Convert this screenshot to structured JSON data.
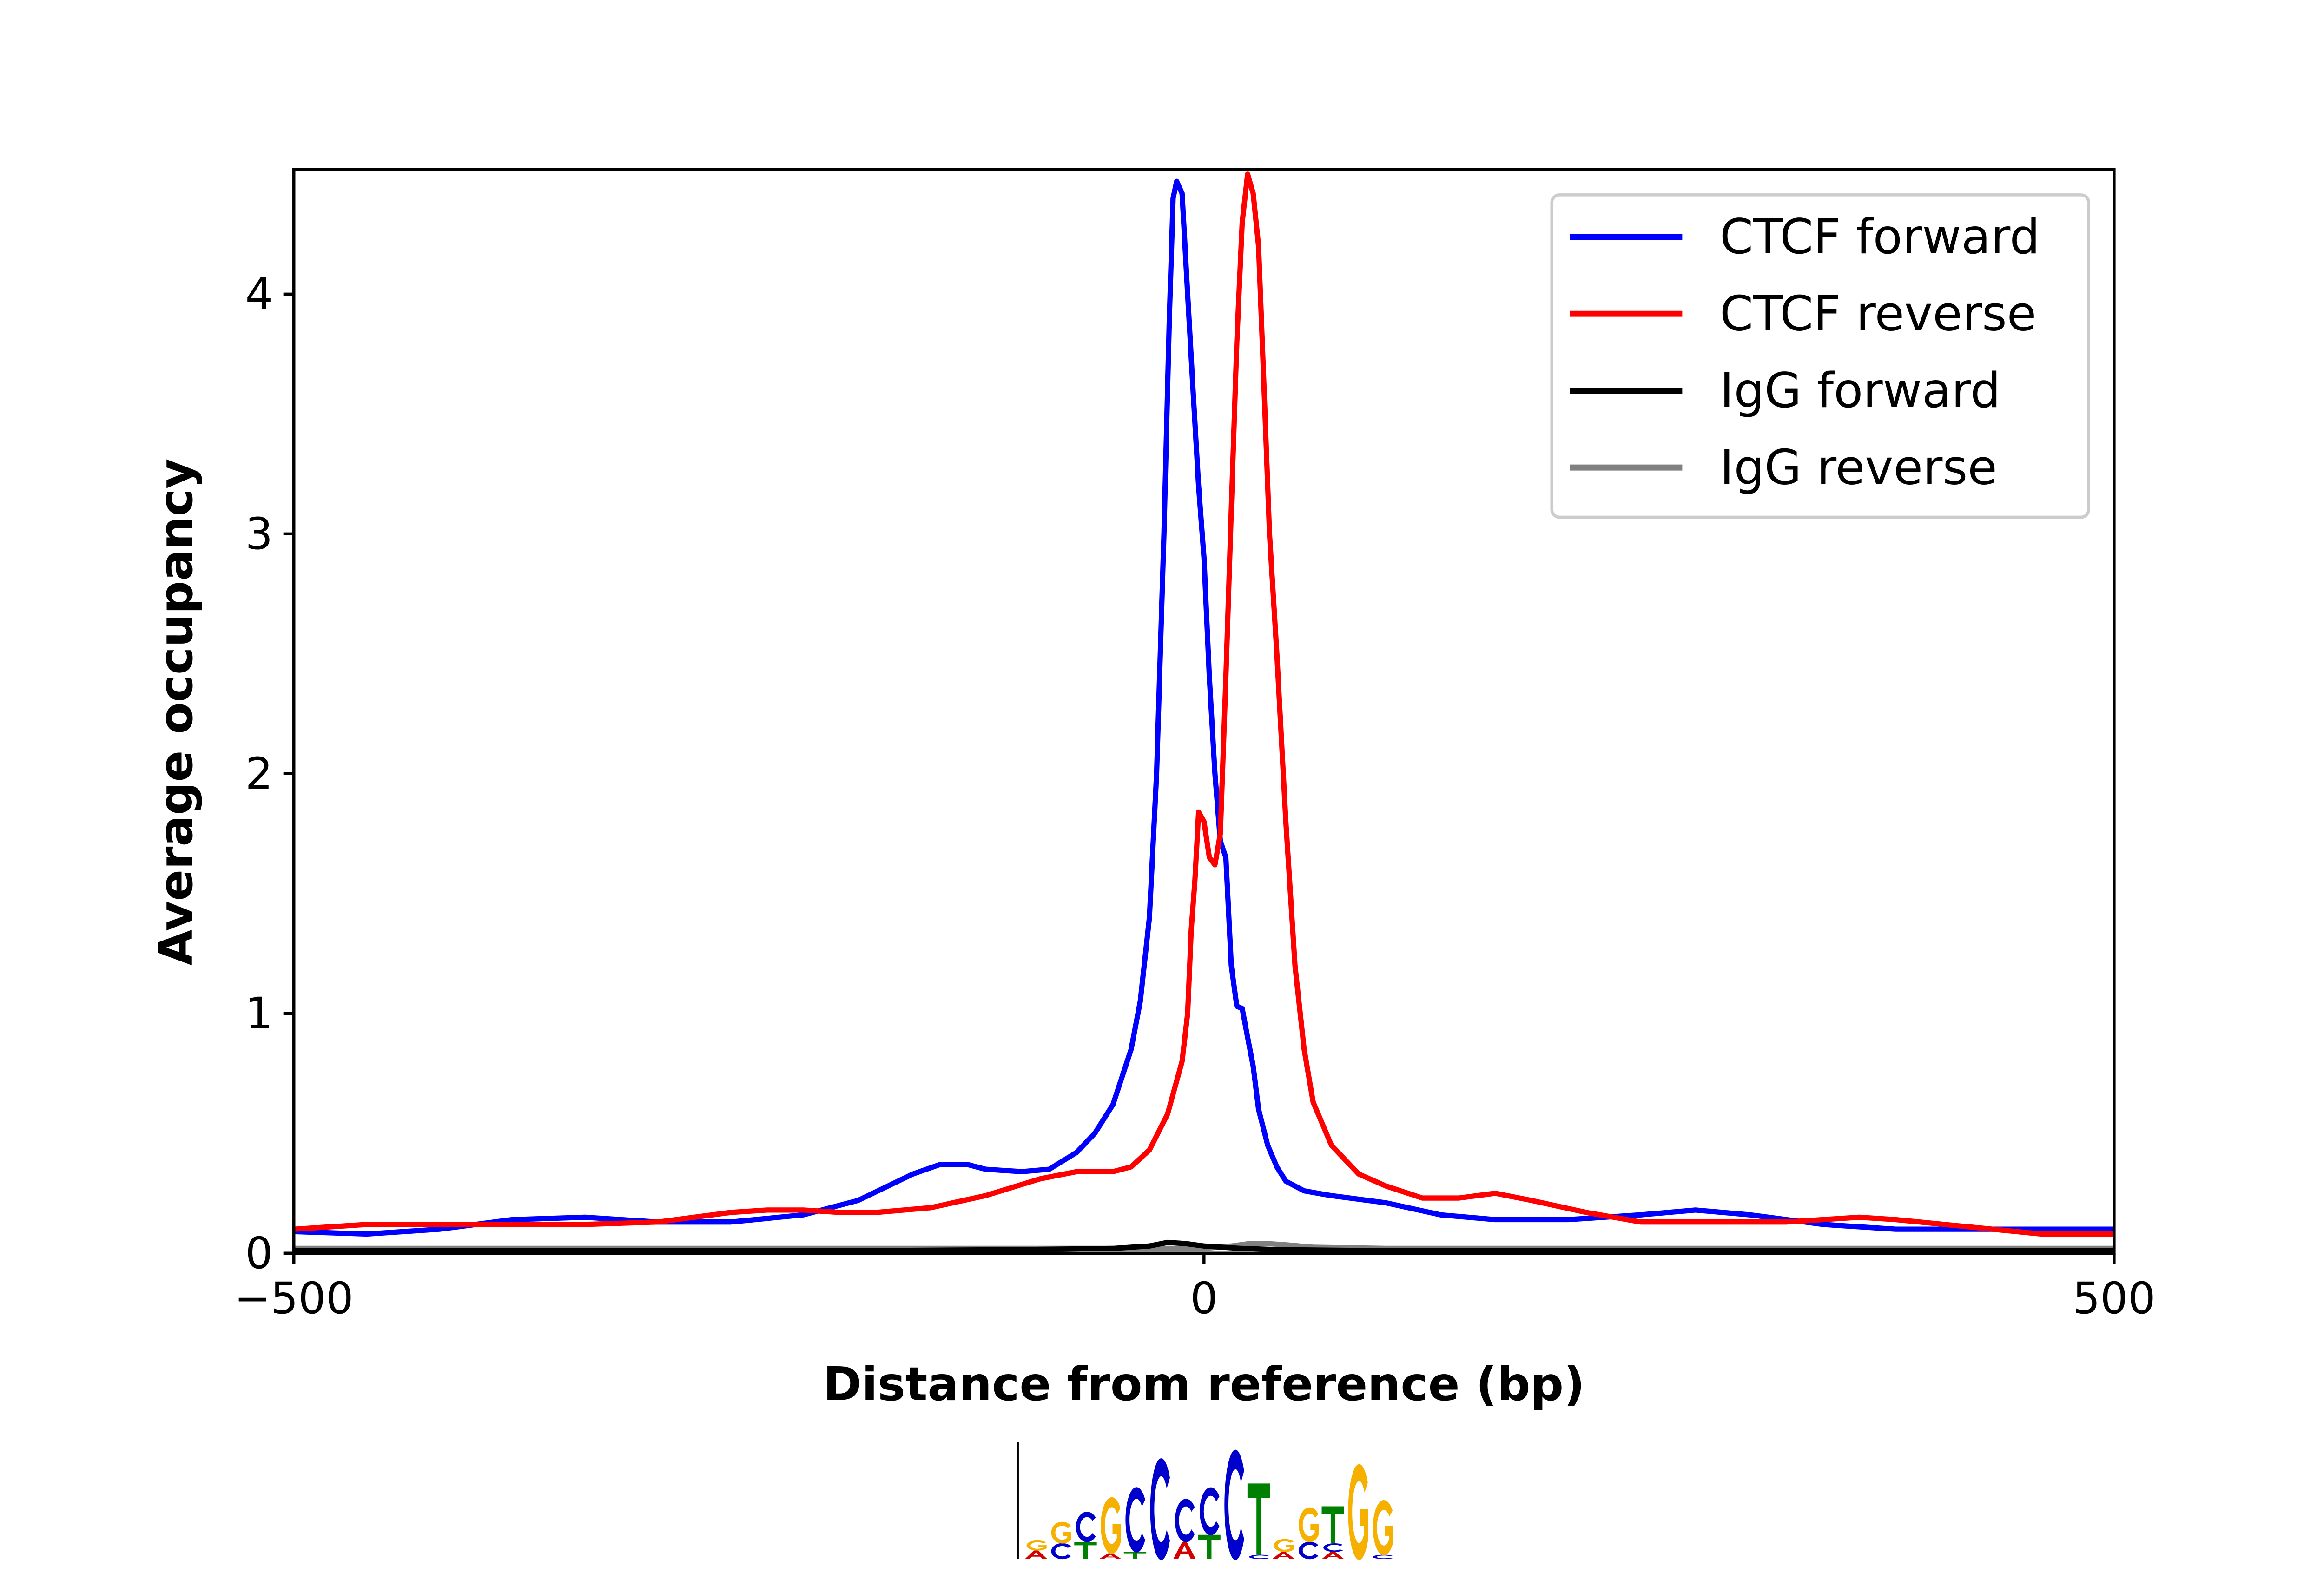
{
  "chart_data": {
    "type": "line",
    "xlabel": "Distance from reference (bp)",
    "ylabel": "Average occupancy",
    "xlim": [
      -500,
      500
    ],
    "ylim": [
      0,
      4.52
    ],
    "xticks": [
      -500,
      0,
      500
    ],
    "xtick_labels": [
      "−500",
      "0",
      "500"
    ],
    "yticks": [
      0,
      1,
      2,
      3,
      4
    ],
    "ytick_labels": [
      "0",
      "1",
      "2",
      "3",
      "4"
    ],
    "grid": false,
    "legend_position": "top-right",
    "series": [
      {
        "name": "CTCF forward",
        "color": "#0000ff",
        "x": [
          -500,
          -460,
          -420,
          -380,
          -340,
          -300,
          -260,
          -220,
          -190,
          -160,
          -145,
          -130,
          -120,
          -100,
          -85,
          -70,
          -60,
          -50,
          -40,
          -35,
          -30,
          -26,
          -22,
          -19,
          -17,
          -15,
          -12,
          -9,
          -6,
          -3,
          0,
          3,
          6,
          9,
          12,
          15,
          18,
          21,
          24,
          27,
          30,
          35,
          40,
          45,
          55,
          70,
          100,
          130,
          160,
          200,
          240,
          270,
          300,
          340,
          380,
          420,
          460,
          500
        ],
        "y": [
          0.09,
          0.08,
          0.1,
          0.14,
          0.15,
          0.13,
          0.13,
          0.16,
          0.22,
          0.33,
          0.37,
          0.37,
          0.35,
          0.34,
          0.35,
          0.42,
          0.5,
          0.62,
          0.85,
          1.05,
          1.4,
          2.0,
          3.0,
          3.9,
          4.4,
          4.47,
          4.42,
          4.0,
          3.6,
          3.2,
          2.9,
          2.4,
          2.0,
          1.72,
          1.65,
          1.2,
          1.03,
          1.02,
          0.9,
          0.78,
          0.6,
          0.45,
          0.36,
          0.3,
          0.26,
          0.24,
          0.21,
          0.16,
          0.14,
          0.14,
          0.16,
          0.18,
          0.16,
          0.12,
          0.1,
          0.1,
          0.1,
          0.1
        ]
      },
      {
        "name": "CTCF reverse",
        "color": "#ff0000",
        "x": [
          -500,
          -460,
          -420,
          -380,
          -340,
          -300,
          -260,
          -240,
          -220,
          -200,
          -180,
          -150,
          -120,
          -90,
          -70,
          -50,
          -40,
          -30,
          -20,
          -12,
          -9,
          -7,
          -5,
          -3,
          0,
          3,
          6,
          9,
          12,
          15,
          18,
          21,
          24,
          27,
          30,
          33,
          36,
          40,
          45,
          50,
          55,
          60,
          70,
          85,
          100,
          120,
          140,
          160,
          180,
          210,
          240,
          280,
          320,
          360,
          380,
          420,
          460,
          500
        ],
        "y": [
          0.1,
          0.12,
          0.12,
          0.12,
          0.12,
          0.13,
          0.17,
          0.18,
          0.18,
          0.17,
          0.17,
          0.19,
          0.24,
          0.31,
          0.34,
          0.34,
          0.36,
          0.43,
          0.58,
          0.8,
          1.0,
          1.35,
          1.55,
          1.84,
          1.8,
          1.65,
          1.62,
          1.75,
          2.4,
          3.1,
          3.8,
          4.3,
          4.5,
          4.42,
          4.2,
          3.6,
          3.0,
          2.5,
          1.8,
          1.2,
          0.85,
          0.63,
          0.45,
          0.33,
          0.28,
          0.23,
          0.23,
          0.25,
          0.22,
          0.17,
          0.13,
          0.13,
          0.13,
          0.15,
          0.14,
          0.11,
          0.08,
          0.08
        ]
      },
      {
        "name": "IgG forward",
        "color": "#000000",
        "x": [
          -500,
          -200,
          -100,
          -50,
          -30,
          -20,
          -10,
          0,
          10,
          20,
          40,
          100,
          500
        ],
        "y": [
          0.01,
          0.01,
          0.015,
          0.02,
          0.03,
          0.045,
          0.04,
          0.03,
          0.025,
          0.02,
          0.015,
          0.01,
          0.01
        ]
      },
      {
        "name": "IgG reverse",
        "color": "#808080",
        "x": [
          -500,
          -200,
          -100,
          0,
          15,
          25,
          35,
          45,
          60,
          100,
          200,
          500
        ],
        "y": [
          0.02,
          0.02,
          0.02,
          0.02,
          0.03,
          0.04,
          0.04,
          0.035,
          0.025,
          0.02,
          0.02,
          0.02
        ]
      }
    ]
  },
  "motif_logo": {
    "columns": [
      [
        [
          "A",
          0.3
        ],
        [
          "G",
          0.35
        ]
      ],
      [
        [
          "C",
          0.55
        ],
        [
          "G",
          0.75
        ]
      ],
      [
        [
          "T",
          0.6
        ],
        [
          "C",
          1.05
        ]
      ],
      [
        [
          "A",
          0.2
        ],
        [
          "G",
          1.95
        ]
      ],
      [
        [
          "T",
          0.25
        ],
        [
          "C",
          2.25
        ]
      ],
      [
        [
          "C",
          3.5
        ]
      ],
      [
        [
          "A",
          0.6
        ],
        [
          "C",
          1.5
        ]
      ],
      [
        [
          "T",
          0.85
        ],
        [
          "C",
          1.65
        ]
      ],
      [
        [
          "C",
          3.8
        ]
      ],
      [
        [
          "C",
          0.15
        ],
        [
          "T",
          2.5
        ]
      ],
      [
        [
          "A",
          0.25
        ],
        [
          "G",
          0.45
        ]
      ],
      [
        [
          "C",
          0.6
        ],
        [
          "G",
          1.2
        ]
      ],
      [
        [
          "A",
          0.25
        ],
        [
          "C",
          0.3
        ],
        [
          "T",
          1.3
        ]
      ],
      [
        [
          "G",
          3.3
        ]
      ],
      [
        [
          "C",
          0.15
        ],
        [
          "G",
          1.9
        ]
      ]
    ],
    "colors": {
      "A": "#d40000",
      "C": "#0000cc",
      "G": "#f5b000",
      "T": "#008000"
    }
  }
}
